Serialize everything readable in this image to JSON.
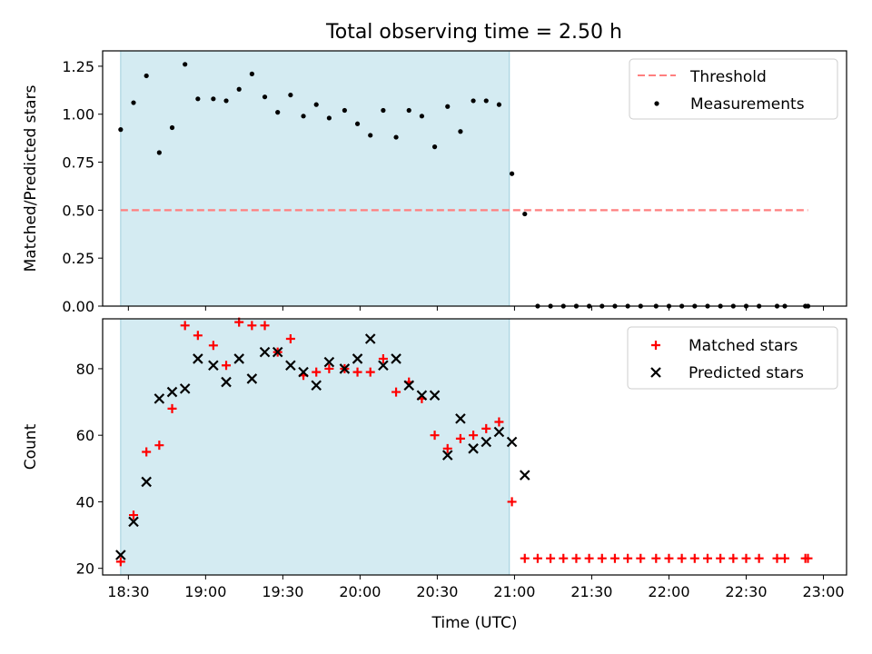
{
  "chart_data": {
    "type": "scatter",
    "title": "Total observing time = 2.50 h",
    "xlabel": "Time (UTC)",
    "x_unit": "time_of_day",
    "xlim": [
      "18:20",
      "23:09"
    ],
    "xticks": [
      "18:30",
      "19:00",
      "19:30",
      "20:00",
      "20:30",
      "21:00",
      "21:30",
      "22:00",
      "22:30",
      "23:00"
    ],
    "shaded_span": [
      "18:27",
      "20:58"
    ],
    "shade_color": "#add8e6",
    "panels": [
      {
        "ylabel": "Matched/Predicted stars",
        "ylim": [
          0,
          1.33
        ],
        "yticks": [
          "0.00",
          "0.25",
          "0.50",
          "0.75",
          "1.00",
          "1.25"
        ],
        "legend_position": "upper right",
        "threshold": {
          "name": "Threshold",
          "value": 0.5,
          "x_range": [
            "18:27",
            "22:54"
          ],
          "color": "#ff7f7f",
          "style": "dashed"
        },
        "series": [
          {
            "name": "Measurements",
            "marker": "dot",
            "color": "#000000",
            "x": [
              "18:27",
              "18:32",
              "18:37",
              "18:42",
              "18:47",
              "18:52",
              "18:57",
              "19:03",
              "19:08",
              "19:13",
              "19:18",
              "19:23",
              "19:28",
              "19:33",
              "19:38",
              "19:43",
              "19:48",
              "19:54",
              "19:59",
              "20:04",
              "20:09",
              "20:14",
              "20:19",
              "20:24",
              "20:29",
              "20:34",
              "20:39",
              "20:44",
              "20:49",
              "20:54",
              "20:59",
              "21:04",
              "21:09",
              "21:14",
              "21:19",
              "21:24",
              "21:29",
              "21:34",
              "21:39",
              "21:44",
              "21:49",
              "21:55",
              "22:00",
              "22:05",
              "22:10",
              "22:15",
              "22:20",
              "22:25",
              "22:30",
              "22:35",
              "22:42",
              "22:45",
              "22:53",
              "22:54"
            ],
            "y": [
              0.92,
              1.06,
              1.2,
              0.8,
              0.93,
              1.26,
              1.08,
              1.08,
              1.07,
              1.13,
              1.21,
              1.09,
              1.01,
              1.1,
              0.99,
              1.05,
              0.98,
              1.02,
              0.95,
              0.89,
              1.02,
              0.88,
              1.02,
              0.99,
              0.83,
              1.04,
              0.91,
              1.07,
              1.07,
              1.05,
              0.69,
              0.48,
              0,
              0,
              0,
              0,
              0,
              0,
              0,
              0,
              0,
              0,
              0,
              0,
              0,
              0,
              0,
              0,
              0,
              0,
              0,
              0,
              0,
              0
            ]
          }
        ]
      },
      {
        "ylabel": "Count",
        "ylim": [
          18,
          95
        ],
        "yticks": [
          "20",
          "40",
          "60",
          "80"
        ],
        "legend_position": "upper right",
        "series": [
          {
            "name": "Matched stars",
            "marker": "plus",
            "color": "#ff0000",
            "x": [
              "18:27",
              "18:32",
              "18:37",
              "18:42",
              "18:47",
              "18:52",
              "18:57",
              "19:03",
              "19:08",
              "19:13",
              "19:18",
              "19:23",
              "19:28",
              "19:33",
              "19:38",
              "19:43",
              "19:48",
              "19:54",
              "19:59",
              "20:04",
              "20:09",
              "20:14",
              "20:19",
              "20:24",
              "20:29",
              "20:34",
              "20:39",
              "20:44",
              "20:49",
              "20:54",
              "20:59",
              "21:04",
              "21:09",
              "21:14",
              "21:19",
              "21:24",
              "21:29",
              "21:34",
              "21:39",
              "21:44",
              "21:49",
              "21:55",
              "22:00",
              "22:05",
              "22:10",
              "22:15",
              "22:20",
              "22:25",
              "22:30",
              "22:35",
              "22:42",
              "22:45",
              "22:53",
              "22:54"
            ],
            "y": [
              22,
              36,
              55,
              57,
              68,
              93,
              90,
              87,
              81,
              94,
              93,
              93,
              85,
              89,
              78,
              79,
              80,
              80,
              79,
              79,
              83,
              73,
              76,
              71,
              60,
              56,
              59,
              60,
              62,
              64,
              40,
              23,
              23,
              23,
              23,
              23,
              23,
              23,
              23,
              23,
              23,
              23,
              23,
              23,
              23,
              23,
              23,
              23,
              23,
              23,
              23,
              23,
              23,
              23
            ]
          },
          {
            "name": "Predicted stars",
            "marker": "x",
            "color": "#000000",
            "x": [
              "18:27",
              "18:32",
              "18:37",
              "18:42",
              "18:47",
              "18:52",
              "18:57",
              "19:03",
              "19:08",
              "19:13",
              "19:18",
              "19:23",
              "19:28",
              "19:33",
              "19:38",
              "19:43",
              "19:48",
              "19:54",
              "19:59",
              "20:04",
              "20:09",
              "20:14",
              "20:19",
              "20:24",
              "20:29",
              "20:34",
              "20:39",
              "20:44",
              "20:49",
              "20:54",
              "20:59",
              "21:04"
            ],
            "y": [
              24,
              34,
              46,
              71,
              73,
              74,
              83,
              81,
              76,
              83,
              77,
              85,
              85,
              81,
              79,
              75,
              82,
              80,
              83,
              89,
              81,
              83,
              75,
              72,
              72,
              54,
              65,
              56,
              58,
              61,
              58,
              48
            ]
          }
        ]
      }
    ]
  }
}
